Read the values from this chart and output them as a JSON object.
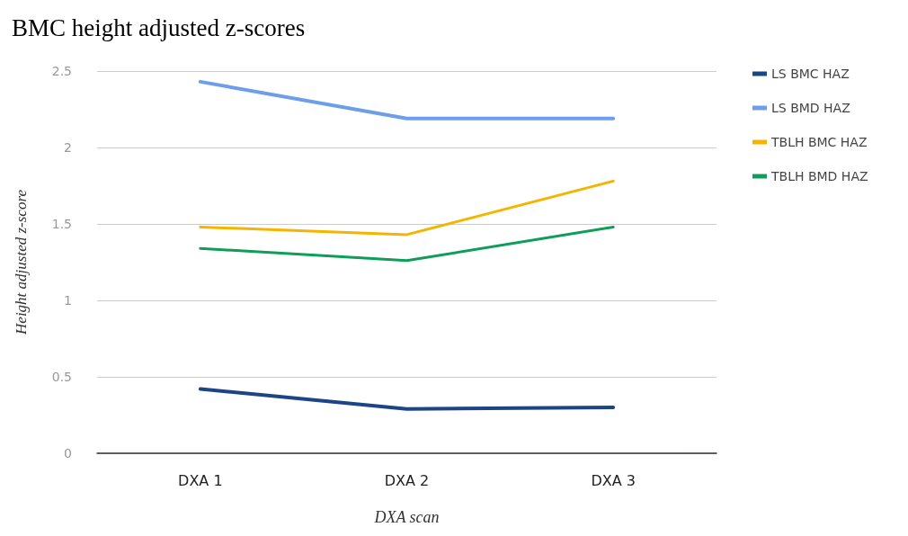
{
  "chart_data": {
    "type": "line",
    "title": "BMC height adjusted z-scores",
    "xlabel": "DXA scan",
    "ylabel": "Height adjusted z-score",
    "categories": [
      "DXA 1",
      "DXA 2",
      "DXA 3"
    ],
    "series": [
      {
        "name": "LS BMC HAZ",
        "color": "#1c4587",
        "values": [
          0.42,
          0.29,
          0.3
        ]
      },
      {
        "name": "LS BMD HAZ",
        "color": "#6d9eeb",
        "values": [
          2.43,
          2.19,
          2.19
        ]
      },
      {
        "name": "TBLH BMC HAZ",
        "color": "#f4b400",
        "values": [
          1.48,
          1.43,
          1.78
        ]
      },
      {
        "name": "TBLH BMD HAZ",
        "color": "#0f9d58",
        "values": [
          1.34,
          1.26,
          1.48
        ]
      }
    ],
    "ylim": [
      0,
      2.5
    ],
    "yticks": [
      0,
      0.5,
      1,
      1.5,
      2,
      2.5
    ],
    "grid": "y",
    "legend": "top right",
    "marker": "none",
    "line_style": "solid"
  }
}
